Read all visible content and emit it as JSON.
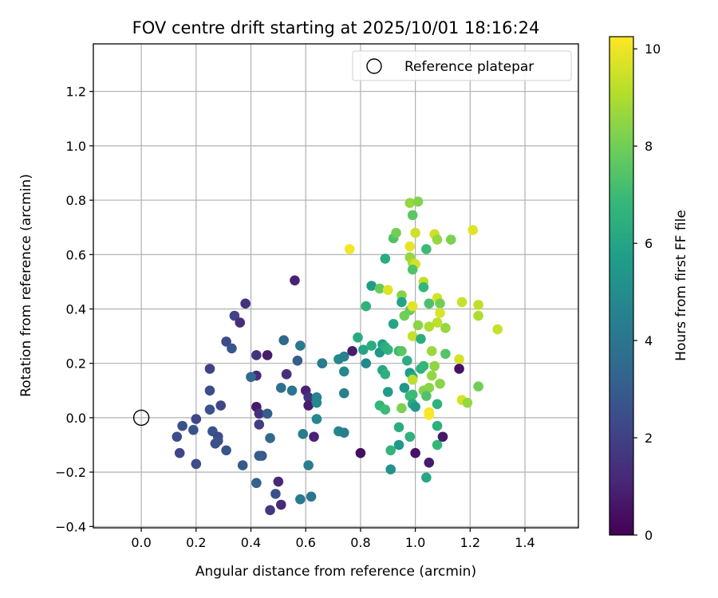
{
  "chart_data": {
    "type": "scatter",
    "title": "FOV centre drift starting at 2025/10/01 18:16:24",
    "xlabel": "Angular distance from reference (arcmin)",
    "ylabel": "Rotation from reference (arcmin)",
    "xlim": [
      -0.175,
      1.595
    ],
    "ylim": [
      -0.405,
      1.375
    ],
    "xticks": [
      0.0,
      0.2,
      0.4,
      0.6,
      0.8,
      1.0,
      1.2,
      1.4
    ],
    "xtick_labels": [
      "0.0",
      "0.2",
      "0.4",
      "0.6",
      "0.8",
      "1.0",
      "1.2",
      "1.4"
    ],
    "yticks": [
      -0.4,
      -0.2,
      0.0,
      0.2,
      0.4,
      0.6,
      0.8,
      1.0,
      1.2
    ],
    "ytick_labels": [
      "−0.4",
      "−0.2",
      "0.0",
      "0.2",
      "0.4",
      "0.6",
      "0.8",
      "1.0",
      "1.2"
    ],
    "grid": true,
    "legend": {
      "label": "Reference platepar",
      "position": "top-right"
    },
    "reference_point": {
      "x": 0.0,
      "y": 0.0
    },
    "colorbar": {
      "label": "Hours from first FF file",
      "colormap": "viridis",
      "min": 0,
      "max": 10.25,
      "ticks": [
        0,
        2,
        4,
        6,
        8,
        10
      ],
      "tick_labels": [
        "0",
        "2",
        "4",
        "6",
        "8",
        "10"
      ]
    },
    "colormap_stops": [
      "#440154",
      "#482878",
      "#3e4989",
      "#31688e",
      "#26828e",
      "#1f9e89",
      "#35b779",
      "#6ece58",
      "#b5de2b",
      "#fde725"
    ],
    "points": [
      {
        "x": 0.56,
        "y": 0.505,
        "h": 1.0
      },
      {
        "x": 0.38,
        "y": 0.42,
        "h": 1.5
      },
      {
        "x": 0.34,
        "y": 0.375,
        "h": 2.1
      },
      {
        "x": 0.36,
        "y": 0.35,
        "h": 1.3
      },
      {
        "x": 0.31,
        "y": 0.28,
        "h": 2.3
      },
      {
        "x": 0.33,
        "y": 0.255,
        "h": 2.8
      },
      {
        "x": 0.42,
        "y": 0.23,
        "h": 1.5
      },
      {
        "x": 0.46,
        "y": 0.23,
        "h": 0.8
      },
      {
        "x": 0.25,
        "y": 0.18,
        "h": 2.0
      },
      {
        "x": 0.42,
        "y": 0.155,
        "h": 1.3
      },
      {
        "x": 0.4,
        "y": 0.15,
        "h": 3.6
      },
      {
        "x": 0.25,
        "y": 0.1,
        "h": 2.4
      },
      {
        "x": 0.29,
        "y": 0.045,
        "h": 2.2
      },
      {
        "x": 0.25,
        "y": 0.03,
        "h": 2.6
      },
      {
        "x": 0.42,
        "y": 0.04,
        "h": 0.7
      },
      {
        "x": 0.43,
        "y": 0.015,
        "h": 1.5
      },
      {
        "x": 0.46,
        "y": 0.015,
        "h": 3.0
      },
      {
        "x": 0.2,
        "y": -0.005,
        "h": 2.2
      },
      {
        "x": 0.15,
        "y": -0.03,
        "h": 2.6
      },
      {
        "x": 0.13,
        "y": -0.07,
        "h": 2.4
      },
      {
        "x": 0.19,
        "y": -0.045,
        "h": 2.6
      },
      {
        "x": 0.26,
        "y": -0.05,
        "h": 2.7
      },
      {
        "x": 0.28,
        "y": -0.07,
        "h": 2.3
      },
      {
        "x": 0.27,
        "y": -0.095,
        "h": 2.5
      },
      {
        "x": 0.28,
        "y": -0.085,
        "h": 2.6
      },
      {
        "x": 0.43,
        "y": -0.025,
        "h": 1.9
      },
      {
        "x": 0.47,
        "y": -0.075,
        "h": 3.4
      },
      {
        "x": 0.31,
        "y": -0.12,
        "h": 2.7
      },
      {
        "x": 0.14,
        "y": -0.13,
        "h": 2.2
      },
      {
        "x": 0.2,
        "y": -0.17,
        "h": 2.4
      },
      {
        "x": 0.37,
        "y": -0.175,
        "h": 2.8
      },
      {
        "x": 0.44,
        "y": -0.14,
        "h": 2.8
      },
      {
        "x": 0.43,
        "y": -0.14,
        "h": 3.0
      },
      {
        "x": 0.42,
        "y": -0.24,
        "h": 3.2
      },
      {
        "x": 0.5,
        "y": -0.235,
        "h": 1.2
      },
      {
        "x": 0.49,
        "y": -0.28,
        "h": 2.6
      },
      {
        "x": 0.51,
        "y": -0.32,
        "h": 1.2
      },
      {
        "x": 0.47,
        "y": -0.34,
        "h": 1.7
      },
      {
        "x": 0.52,
        "y": 0.285,
        "h": 3.4
      },
      {
        "x": 0.58,
        "y": 0.265,
        "h": 4.2
      },
      {
        "x": 0.57,
        "y": 0.21,
        "h": 3.0
      },
      {
        "x": 0.53,
        "y": 0.16,
        "h": 1.0
      },
      {
        "x": 0.53,
        "y": 0.16,
        "h": 1.4
      },
      {
        "x": 0.51,
        "y": 0.11,
        "h": 3.8
      },
      {
        "x": 0.55,
        "y": 0.1,
        "h": 4.0
      },
      {
        "x": 0.6,
        "y": 0.1,
        "h": 1.0
      },
      {
        "x": 0.61,
        "y": 0.075,
        "h": 1.5
      },
      {
        "x": 0.61,
        "y": 0.045,
        "h": 0.8
      },
      {
        "x": 0.64,
        "y": 0.075,
        "h": 4.6
      },
      {
        "x": 0.64,
        "y": 0.055,
        "h": 4.8
      },
      {
        "x": 0.64,
        "y": -0.005,
        "h": 4.7
      },
      {
        "x": 0.59,
        "y": -0.06,
        "h": 4.3
      },
      {
        "x": 0.63,
        "y": -0.07,
        "h": 1.0
      },
      {
        "x": 0.61,
        "y": -0.175,
        "h": 4.4
      },
      {
        "x": 0.58,
        "y": -0.3,
        "h": 4.2
      },
      {
        "x": 0.62,
        "y": -0.29,
        "h": 4.0
      },
      {
        "x": 0.66,
        "y": 0.2,
        "h": 4.1
      },
      {
        "x": 0.66,
        "y": 0.2,
        "h": 4.3
      },
      {
        "x": 0.72,
        "y": 0.215,
        "h": 4.9
      },
      {
        "x": 0.74,
        "y": 0.225,
        "h": 4.5
      },
      {
        "x": 0.77,
        "y": 0.245,
        "h": 0.8
      },
      {
        "x": 0.74,
        "y": 0.17,
        "h": 4.8
      },
      {
        "x": 0.74,
        "y": 0.09,
        "h": 4.5
      },
      {
        "x": 0.72,
        "y": -0.05,
        "h": 4.7
      },
      {
        "x": 0.74,
        "y": -0.055,
        "h": 4.4
      },
      {
        "x": 0.8,
        "y": -0.13,
        "h": 0.4
      },
      {
        "x": 0.79,
        "y": 0.295,
        "h": 6.2
      },
      {
        "x": 0.81,
        "y": 0.25,
        "h": 6.0
      },
      {
        "x": 0.82,
        "y": 0.2,
        "h": 4.8
      },
      {
        "x": 0.82,
        "y": 0.41,
        "h": 6.6
      },
      {
        "x": 0.84,
        "y": 0.485,
        "h": 5.6
      },
      {
        "x": 0.84,
        "y": 0.265,
        "h": 6.3
      },
      {
        "x": 0.87,
        "y": 0.24,
        "h": 5.4
      },
      {
        "x": 0.88,
        "y": 0.27,
        "h": 5.8
      },
      {
        "x": 0.89,
        "y": 0.26,
        "h": 6.4
      },
      {
        "x": 0.9,
        "y": 0.25,
        "h": 6.6
      },
      {
        "x": 0.88,
        "y": 0.175,
        "h": 6.0
      },
      {
        "x": 0.89,
        "y": 0.16,
        "h": 6.5
      },
      {
        "x": 0.89,
        "y": 0.585,
        "h": 6.3
      },
      {
        "x": 0.92,
        "y": 0.345,
        "h": 6.0
      },
      {
        "x": 0.87,
        "y": 0.475,
        "h": 7.8
      },
      {
        "x": 0.9,
        "y": 0.47,
        "h": 9.8
      },
      {
        "x": 0.87,
        "y": 0.045,
        "h": 6.8
      },
      {
        "x": 0.89,
        "y": 0.03,
        "h": 7.0
      },
      {
        "x": 0.9,
        "y": 0.095,
        "h": 5.6
      },
      {
        "x": 0.91,
        "y": -0.12,
        "h": 6.7
      },
      {
        "x": 0.91,
        "y": -0.19,
        "h": 5.2
      },
      {
        "x": 0.94,
        "y": -0.035,
        "h": 6.4
      },
      {
        "x": 0.94,
        "y": -0.1,
        "h": 5.5
      },
      {
        "x": 0.92,
        "y": 0.66,
        "h": 7.4
      },
      {
        "x": 0.93,
        "y": 0.68,
        "h": 8.0
      },
      {
        "x": 0.94,
        "y": 0.245,
        "h": 6.8
      },
      {
        "x": 0.95,
        "y": 0.245,
        "h": 7.6
      },
      {
        "x": 0.95,
        "y": 0.45,
        "h": 8.3
      },
      {
        "x": 0.95,
        "y": 0.425,
        "h": 5.9
      },
      {
        "x": 0.96,
        "y": 0.375,
        "h": 8.0
      },
      {
        "x": 0.95,
        "y": 0.035,
        "h": 8.2
      },
      {
        "x": 0.96,
        "y": 0.11,
        "h": 5.3
      },
      {
        "x": 0.97,
        "y": 0.21,
        "h": 6.4
      },
      {
        "x": 0.98,
        "y": 0.08,
        "h": 6.9
      },
      {
        "x": 0.99,
        "y": 0.085,
        "h": 7.0
      },
      {
        "x": 0.99,
        "y": 0.05,
        "h": 6.1
      },
      {
        "x": 0.98,
        "y": -0.07,
        "h": 6.5
      },
      {
        "x": 1.0,
        "y": -0.13,
        "h": 0.5
      },
      {
        "x": 0.98,
        "y": 0.165,
        "h": 5.6
      },
      {
        "x": 0.99,
        "y": 0.15,
        "h": 6.1
      },
      {
        "x": 0.98,
        "y": 0.79,
        "h": 8.6
      },
      {
        "x": 1.01,
        "y": 0.795,
        "h": 8.3
      },
      {
        "x": 0.99,
        "y": 0.745,
        "h": 7.6
      },
      {
        "x": 1.0,
        "y": 0.68,
        "h": 9.5
      },
      {
        "x": 0.98,
        "y": 0.63,
        "h": 9.9
      },
      {
        "x": 0.98,
        "y": 0.59,
        "h": 8.6
      },
      {
        "x": 0.99,
        "y": 0.57,
        "h": 8.9
      },
      {
        "x": 1.0,
        "y": 0.565,
        "h": 9.6
      },
      {
        "x": 0.99,
        "y": 0.545,
        "h": 7.4
      },
      {
        "x": 1.03,
        "y": 0.5,
        "h": 9.3
      },
      {
        "x": 1.03,
        "y": 0.48,
        "h": 6.8
      },
      {
        "x": 0.98,
        "y": 0.395,
        "h": 7.9
      },
      {
        "x": 0.99,
        "y": 0.41,
        "h": 9.8
      },
      {
        "x": 1.01,
        "y": 0.34,
        "h": 8.4
      },
      {
        "x": 0.99,
        "y": 0.3,
        "h": 9.4
      },
      {
        "x": 1.02,
        "y": 0.29,
        "h": 6.4
      },
      {
        "x": 1.02,
        "y": 0.18,
        "h": 6.6
      },
      {
        "x": 1.03,
        "y": 0.19,
        "h": 6.8
      },
      {
        "x": 0.99,
        "y": 0.14,
        "h": 9.2
      },
      {
        "x": 1.03,
        "y": 0.1,
        "h": 8.3
      },
      {
        "x": 1.0,
        "y": 0.04,
        "h": 5.4
      },
      {
        "x": 1.04,
        "y": -0.22,
        "h": 6.1
      },
      {
        "x": 1.04,
        "y": 0.62,
        "h": 7.0
      },
      {
        "x": 1.05,
        "y": 0.42,
        "h": 7.3
      },
      {
        "x": 1.05,
        "y": 0.335,
        "h": 9.0
      },
      {
        "x": 1.06,
        "y": 0.245,
        "h": 8.7
      },
      {
        "x": 1.05,
        "y": 0.11,
        "h": 8.4
      },
      {
        "x": 1.04,
        "y": 0.08,
        "h": 7.4
      },
      {
        "x": 1.05,
        "y": 0.02,
        "h": 10.1
      },
      {
        "x": 1.05,
        "y": 0.01,
        "h": 10.2
      },
      {
        "x": 1.05,
        "y": -0.165,
        "h": 0.8
      },
      {
        "x": 1.07,
        "y": 0.675,
        "h": 9.5
      },
      {
        "x": 1.08,
        "y": 0.655,
        "h": 8.6
      },
      {
        "x": 1.08,
        "y": 0.44,
        "h": 9.6
      },
      {
        "x": 1.09,
        "y": 0.42,
        "h": 8.0
      },
      {
        "x": 1.09,
        "y": 0.385,
        "h": 9.7
      },
      {
        "x": 1.08,
        "y": 0.35,
        "h": 9.2
      },
      {
        "x": 1.07,
        "y": 0.19,
        "h": 8.5
      },
      {
        "x": 1.06,
        "y": 0.155,
        "h": 8.6
      },
      {
        "x": 1.08,
        "y": 0.05,
        "h": 6.6
      },
      {
        "x": 1.09,
        "y": 0.125,
        "h": 8.4
      },
      {
        "x": 1.08,
        "y": -0.03,
        "h": 6.5
      },
      {
        "x": 1.08,
        "y": -0.1,
        "h": 6.8
      },
      {
        "x": 1.1,
        "y": -0.07,
        "h": 0.7
      },
      {
        "x": 1.11,
        "y": 0.33,
        "h": 8.6
      },
      {
        "x": 1.11,
        "y": 0.235,
        "h": 7.5
      },
      {
        "x": 1.13,
        "y": 0.655,
        "h": 8.2
      },
      {
        "x": 1.16,
        "y": 0.215,
        "h": 9.6
      },
      {
        "x": 1.16,
        "y": 0.18,
        "h": 0.5
      },
      {
        "x": 1.17,
        "y": 0.425,
        "h": 9.4
      },
      {
        "x": 1.17,
        "y": 0.065,
        "h": 9.6
      },
      {
        "x": 1.19,
        "y": 0.055,
        "h": 8.6
      },
      {
        "x": 1.21,
        "y": 0.69,
        "h": 9.8
      },
      {
        "x": 1.23,
        "y": 0.415,
        "h": 9.3
      },
      {
        "x": 1.23,
        "y": 0.375,
        "h": 9.0
      },
      {
        "x": 1.23,
        "y": 0.115,
        "h": 8.0
      },
      {
        "x": 1.3,
        "y": 0.325,
        "h": 9.4
      },
      {
        "x": 0.76,
        "y": 0.62,
        "h": 10.1
      }
    ]
  }
}
